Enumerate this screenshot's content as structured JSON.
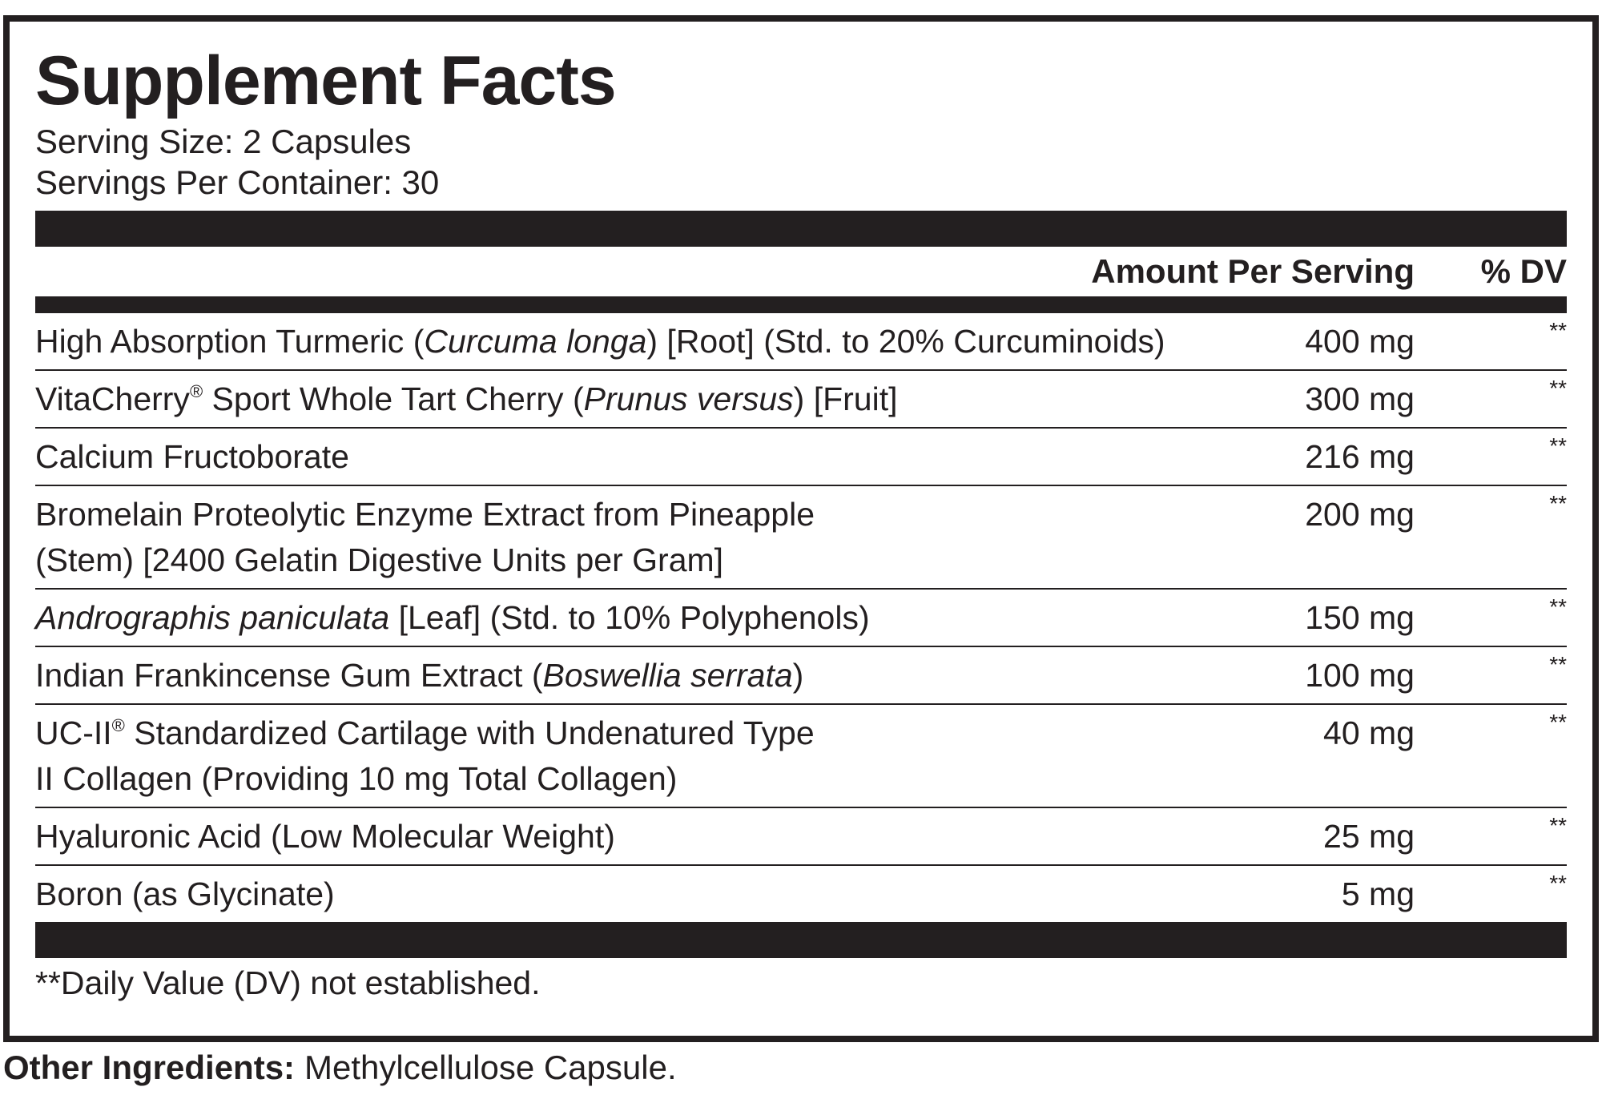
{
  "title": "Supplement Facts",
  "serving_size": "Serving Size: 2 Capsules",
  "servings_per_container": "Servings Per Container: 30",
  "header": {
    "amount": "Amount Per Serving",
    "dv": "% DV"
  },
  "rows": [
    {
      "name": [
        [
          {
            "text": "High Absorption Turmeric ("
          },
          {
            "text": "Curcuma longa",
            "style": "italic"
          },
          {
            "text": ") [Root] (Std. to 20% Curcuminoids)"
          }
        ]
      ],
      "amount": "400 mg",
      "dv": "**"
    },
    {
      "name": [
        [
          {
            "text": "VitaCherry"
          },
          {
            "text": "®",
            "style": "sup"
          },
          {
            "text": " Sport Whole Tart Cherry ("
          },
          {
            "text": "Prunus versus",
            "style": "italic"
          },
          {
            "text": ") [Fruit]"
          }
        ]
      ],
      "amount": "300 mg",
      "dv": "**"
    },
    {
      "name": [
        [
          {
            "text": "Calcium Fructoborate"
          }
        ]
      ],
      "amount": "216 mg",
      "dv": "**"
    },
    {
      "name": [
        [
          {
            "text": "Bromelain Proteolytic Enzyme Extract from Pineapple"
          }
        ],
        [
          {
            "text": "(Stem) [2400 Gelatin Digestive Units per Gram]"
          }
        ]
      ],
      "amount": "200 mg",
      "dv": "**"
    },
    {
      "name": [
        [
          {
            "text": "Andrographis paniculata",
            "style": "italic"
          },
          {
            "text": " [Leaf] (Std. to 10% Polyphenols)"
          }
        ]
      ],
      "amount": "150 mg",
      "dv": "**"
    },
    {
      "name": [
        [
          {
            "text": "Indian Frankincense Gum Extract ("
          },
          {
            "text": "Boswellia serrata",
            "style": "italic"
          },
          {
            "text": ")"
          }
        ]
      ],
      "amount": "100 mg",
      "dv": "**"
    },
    {
      "name": [
        [
          {
            "text": "UC-II"
          },
          {
            "text": "®",
            "style": "sup"
          },
          {
            "text": " Standardized Cartilage with Undenatured Type"
          }
        ],
        [
          {
            "text": "II Collagen (Providing 10 mg Total Collagen)"
          }
        ]
      ],
      "amount": "40 mg",
      "dv": "**"
    },
    {
      "name": [
        [
          {
            "text": "Hyaluronic Acid (Low Molecular Weight)"
          }
        ]
      ],
      "amount": "25 mg",
      "dv": "**"
    },
    {
      "name": [
        [
          {
            "text": "Boron (as Glycinate)"
          }
        ]
      ],
      "amount": "5 mg",
      "dv": "**"
    }
  ],
  "footnote": "**Daily Value (DV) not established.",
  "other_ingredients": {
    "label": "Other Ingredients:",
    "text": "Methylcellulose Capsule."
  }
}
